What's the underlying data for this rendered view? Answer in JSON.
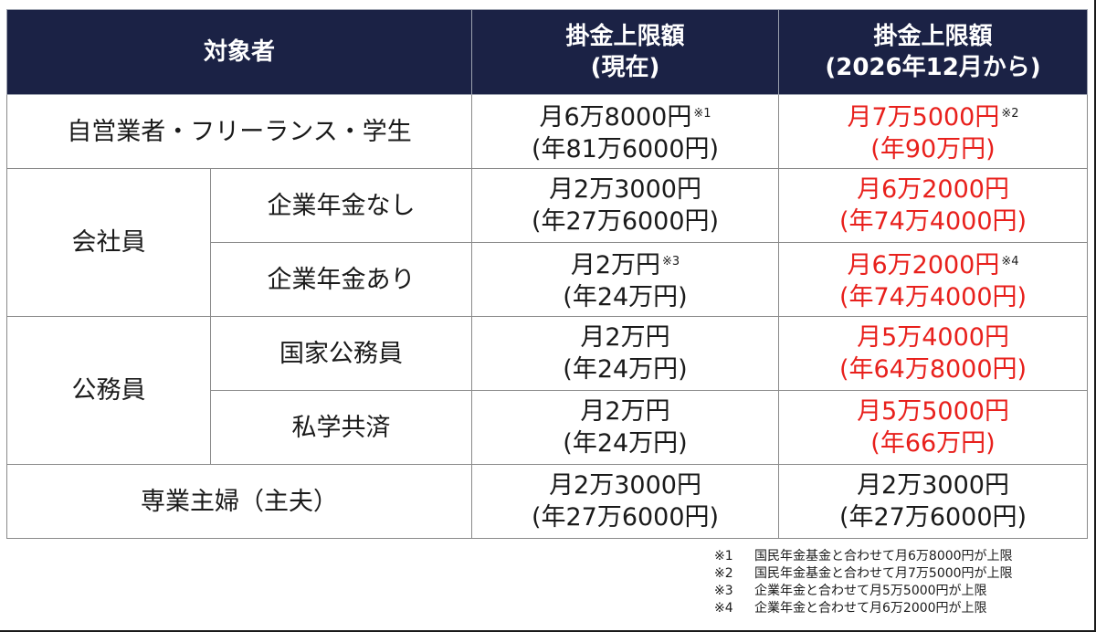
{
  "header": {
    "target": "対象者",
    "current_line1": "掛金上限額",
    "current_line2": "(現在)",
    "future_line1": "掛金上限額",
    "future_line2": "(2026年12月から)"
  },
  "rows": {
    "self_employed": {
      "label": "自営業者・フリーランス・学生",
      "current_monthly": "月6万8000円",
      "current_note": "※1",
      "current_annual": "(年81万6000円)",
      "future_monthly": "月7万5000円",
      "future_note": "※2",
      "future_annual": "(年90万円)"
    },
    "employee": {
      "label": "会社員",
      "no_pension": {
        "label": "企業年金なし",
        "current_monthly": "月2万3000円",
        "current_annual": "(年27万6000円)",
        "future_monthly": "月6万2000円",
        "future_annual": "(年74万4000円)"
      },
      "with_pension": {
        "label": "企業年金あり",
        "current_monthly": "月2万円",
        "current_note": "※3",
        "current_annual": "(年24万円)",
        "future_monthly": "月6万2000円",
        "future_note": "※4",
        "future_annual": "(年74万4000円)"
      }
    },
    "civil_servant": {
      "label": "公務員",
      "national": {
        "label": "国家公務員",
        "current_monthly": "月2万円",
        "current_annual": "(年24万円)",
        "future_monthly": "月5万4000円",
        "future_annual": "(年64万8000円)"
      },
      "private_school": {
        "label": "私学共済",
        "current_monthly": "月2万円",
        "current_annual": "(年24万円)",
        "future_monthly": "月5万5000円",
        "future_annual": "(年66万円)"
      }
    },
    "homemaker": {
      "label": "専業主婦（主夫）",
      "current_monthly": "月2万3000円",
      "current_annual": "(年27万6000円)",
      "future_monthly": "月2万3000円",
      "future_annual": "(年27万6000円)"
    }
  },
  "footnotes": [
    {
      "mark": "※1",
      "text": "国民年金基金と合わせて月6万8000円が上限"
    },
    {
      "mark": "※2",
      "text": "国民年金基金と合わせて月7万5000円が上限"
    },
    {
      "mark": "※3",
      "text": "企業年金と合わせて月5万5000円が上限"
    },
    {
      "mark": "※4",
      "text": "企業年金と合わせて月6万2000円が上限"
    }
  ],
  "colors": {
    "header_bg": "#1b2245",
    "highlight_red": "#e8201c"
  }
}
